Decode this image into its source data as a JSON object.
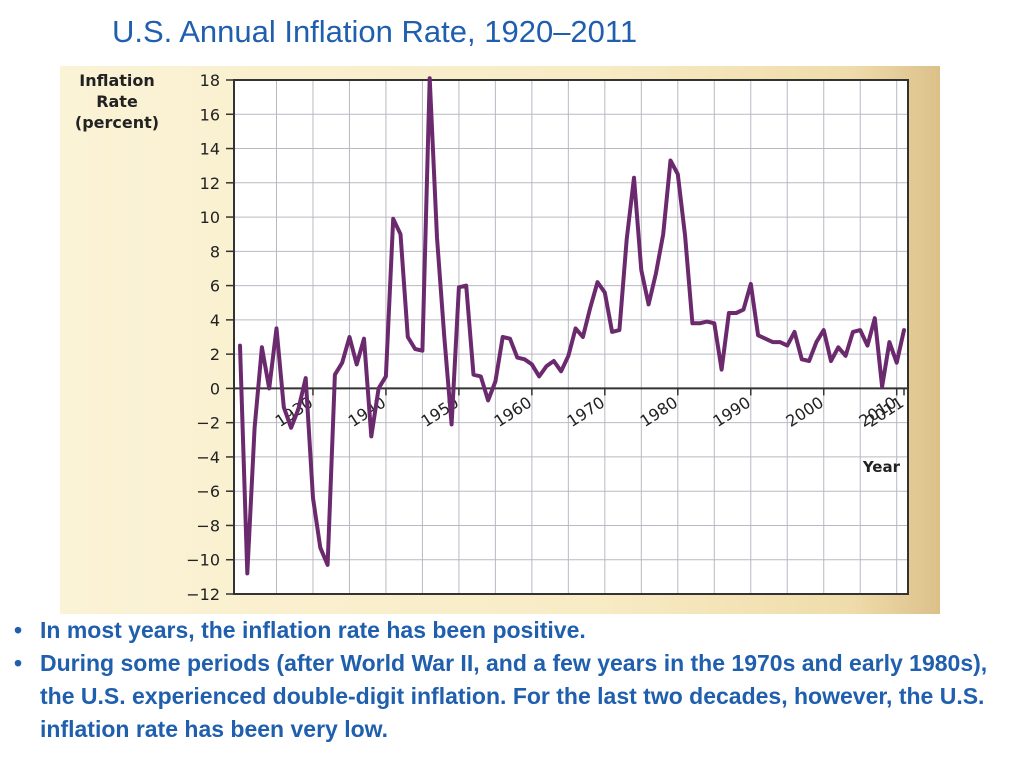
{
  "slide": {
    "title": "U.S. Annual Inflation Rate, 1920–2011"
  },
  "bullets": [
    "In most years, the inflation rate has been positive.",
    "During some periods (after World War II, and a few years in the 1970s and early 1980s), the U.S. experienced double-digit inflation. For the last two decades, however, the U.S. inflation rate has been very low."
  ],
  "colors": {
    "title": "#1f5fae",
    "line": "#6b2a6e",
    "grid": "#b9b9c4",
    "plot_bg": "#ffffff"
  },
  "chart_data": {
    "type": "line",
    "ylabel": [
      "Inflation",
      "Rate",
      "(percent)"
    ],
    "xlabel": "Year",
    "ylim": [
      -12,
      18
    ],
    "xlim": [
      1920,
      2011
    ],
    "y_ticks": [
      18,
      16,
      14,
      12,
      10,
      8,
      6,
      4,
      2,
      0,
      -2,
      -4,
      -6,
      -8,
      -10,
      -12
    ],
    "y_tick_labels": [
      "18",
      "16",
      "14",
      "12",
      "10",
      "8",
      "6",
      "4",
      "2",
      "0",
      "−2",
      "−4",
      "−6",
      "−8",
      "−10",
      "−12"
    ],
    "x_ticks": [
      1930,
      1940,
      1950,
      1960,
      1970,
      1980,
      1990,
      2000,
      2010,
      2011
    ],
    "x_tick_labels": [
      "1930",
      "1940",
      "1950",
      "1960",
      "1970",
      "1980",
      "1990",
      "2000",
      "2010",
      "2011"
    ],
    "grid": true,
    "series": [
      {
        "x": [
          1920,
          1921,
          1922,
          1923,
          1924,
          1925,
          1926,
          1927,
          1928,
          1929,
          1930,
          1931,
          1932,
          1933,
          1934,
          1935,
          1936,
          1937,
          1938,
          1939,
          1940,
          1941,
          1942,
          1943,
          1944,
          1945,
          1946,
          1947,
          1948,
          1949,
          1950,
          1951,
          1952,
          1953,
          1954,
          1955,
          1956,
          1957,
          1958,
          1959,
          1960,
          1961,
          1962,
          1963,
          1964,
          1965,
          1966,
          1967,
          1968,
          1969,
          1970,
          1971,
          1972,
          1973,
          1974,
          1975,
          1976,
          1977,
          1978,
          1979,
          1980,
          1981,
          1982,
          1983,
          1984,
          1985,
          1986,
          1987,
          1988,
          1989,
          1990,
          1991,
          1992,
          1993,
          1994,
          1995,
          1996,
          1997,
          1998,
          1999,
          2000,
          2001,
          2002,
          2003,
          2004,
          2005,
          2006,
          2007,
          2008,
          2009,
          2010,
          2011
        ],
        "y": [
          2.5,
          -10.8,
          -2.3,
          2.4,
          0.0,
          3.5,
          -1.1,
          -2.3,
          -1.2,
          0.6,
          -6.4,
          -9.3,
          -10.3,
          0.8,
          1.5,
          3.0,
          1.4,
          2.9,
          -2.8,
          0.0,
          0.7,
          9.9,
          9.0,
          3.0,
          2.3,
          2.2,
          18.1,
          8.8,
          3.0,
          -2.1,
          5.9,
          6.0,
          0.8,
          0.7,
          -0.7,
          0.4,
          3.0,
          2.9,
          1.8,
          1.7,
          1.4,
          0.7,
          1.3,
          1.6,
          1.0,
          1.9,
          3.5,
          3.0,
          4.7,
          6.2,
          5.6,
          3.3,
          3.4,
          8.7,
          12.3,
          6.9,
          4.9,
          6.7,
          9.0,
          13.3,
          12.5,
          8.9,
          3.8,
          3.8,
          3.9,
          3.8,
          1.1,
          4.4,
          4.4,
          4.6,
          6.1,
          3.1,
          2.9,
          2.7,
          2.7,
          2.5,
          3.3,
          1.7,
          1.6,
          2.7,
          3.4,
          1.6,
          2.4,
          1.9,
          3.3,
          3.4,
          2.5,
          4.1,
          0.1,
          2.7,
          1.5,
          3.4
        ]
      }
    ]
  }
}
